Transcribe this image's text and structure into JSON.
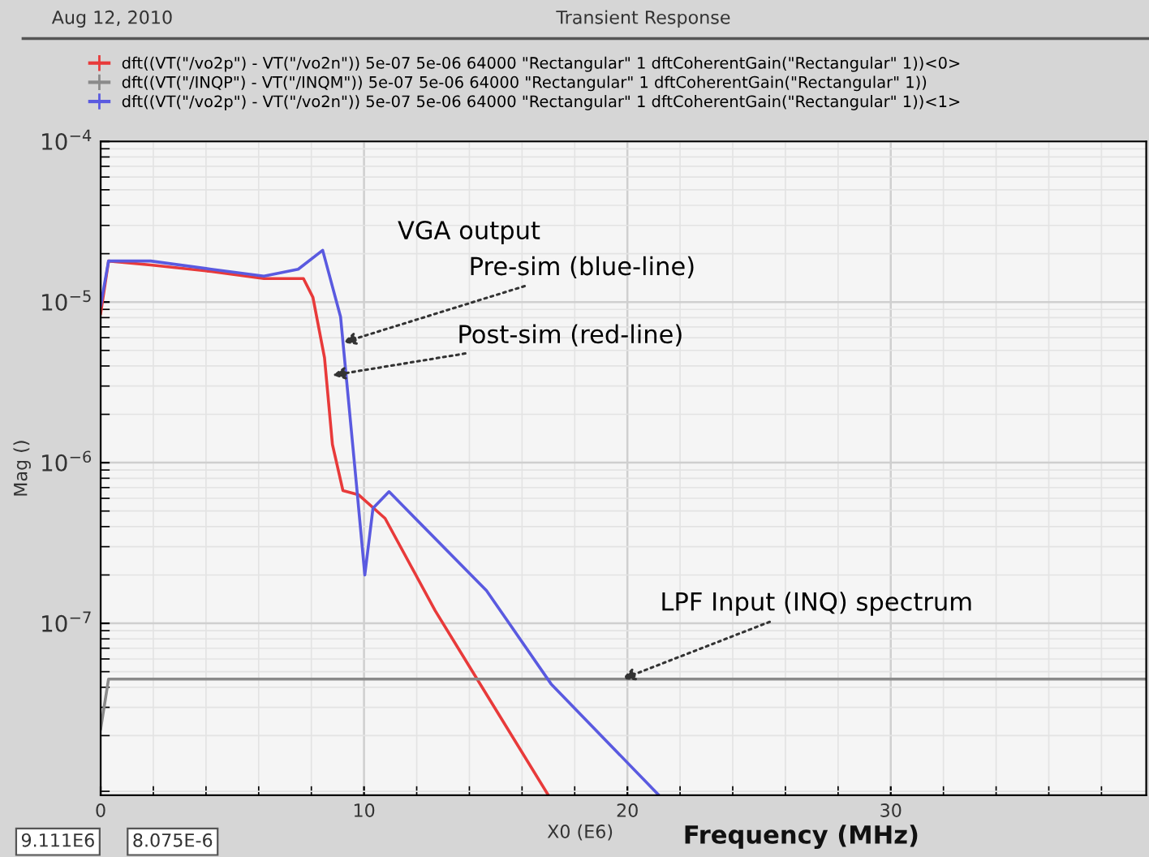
{
  "chart_data": {
    "type": "line",
    "title": "Transient Response",
    "subtitle": "Aug 12, 2010",
    "xlabel": "Frequency (MHz)",
    "ylabel": "Mag ()",
    "log": "y",
    "grid": true,
    "legend": "top",
    "marker": "none",
    "line_style": "solid",
    "xlim": [
      0,
      39.7
    ],
    "xticks": [
      0,
      10,
      20,
      30
    ],
    "ylim": [
      8.5e-09,
      0.0001
    ],
    "yticks": [
      {
        "value": 0.0001,
        "label": "10$^{−4}$"
      },
      {
        "value": 1e-05,
        "label": "10$^{−5}$"
      },
      {
        "value": 1e-06,
        "label": "10$^{−6}$"
      },
      {
        "value": 1e-07,
        "label": "10$^{−7}$"
      }
    ],
    "series": [
      {
        "name": "dft((VT(\"/vo2p\") - VT(\"/vo2n\")) 5e-07 5e-06 64000 \"Rectangular\" 1 dftCoherentGain(\"Rectangular\" 1))<0>",
        "color": "#e83a3a",
        "x": [
          0,
          0.3,
          1.9,
          4.2,
          6.2,
          7.7,
          8.06,
          8.5,
          8.8,
          9.2,
          9.8,
          10.8,
          12.7,
          14.95,
          17.0
        ],
        "values": [
          8.5e-06,
          1.8e-05,
          1.7e-05,
          1.55e-05,
          1.4e-05,
          1.4e-05,
          1.07e-05,
          4.5e-06,
          1.3e-06,
          6.7e-07,
          6.3e-07,
          4.5e-07,
          1.2e-07,
          3e-08,
          8.5e-09
        ]
      },
      {
        "name": "dft((VT(\"/INQP\") - VT(\"/INQM\")) 5e-07 5e-06 64000 \"Rectangular\" 1 dftCoherentGain(\"Rectangular\" 1))",
        "color": "#8a8a8a",
        "x": [
          0,
          0.3,
          39.7
        ],
        "values": [
          2.2e-08,
          4.5e-08,
          4.5e-08
        ]
      },
      {
        "name": "dft((VT(\"/vo2p\") - VT(\"/vo2n\")) 5e-07 5e-06 64000 \"Rectangular\" 1 dftCoherentGain(\"Rectangular\" 1))<1>",
        "color": "#5a5ae0",
        "x": [
          0,
          0.3,
          1.9,
          4.2,
          6.2,
          7.5,
          8.43,
          9.11,
          9.72,
          10.03,
          10.34,
          10.95,
          11.57,
          14.65,
          17.1,
          21.2
        ],
        "values": [
          9.5e-06,
          1.8e-05,
          1.8e-05,
          1.6e-05,
          1.45e-05,
          1.6e-05,
          2.1e-05,
          8.075e-06,
          7.1e-07,
          2e-07,
          5.2e-07,
          6.6e-07,
          5.2e-07,
          1.6e-07,
          4.2e-08,
          8.5e-09
        ]
      }
    ],
    "annotations": [
      "VGA output",
      {
        "text": "Pre-sim (blue-line)",
        "x": 9.2,
        "y": 5.6e-06
      },
      {
        "text": "Post-sim (red-line)",
        "x": 8.8,
        "y": 3.5e-06
      },
      {
        "text": "LPF Input (INQ) spectrum",
        "x": 19.8,
        "y": 4.5e-08
      },
      "X0 (E6)",
      "9.111E6",
      "8.075E-6"
    ]
  }
}
